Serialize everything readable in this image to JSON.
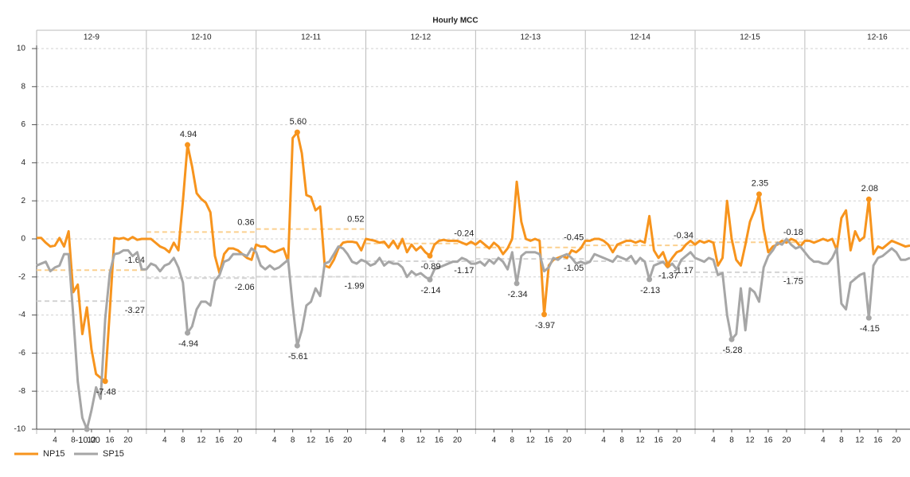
{
  "chart_data": {
    "type": "line",
    "title": "Hourly MCC",
    "days": [
      "12-9",
      "12-10",
      "12-11",
      "12-12",
      "12-13",
      "12-14",
      "12-15",
      "12-16"
    ],
    "x": [
      0,
      1,
      2,
      3,
      4,
      5,
      6,
      7,
      8,
      9,
      10,
      11,
      12,
      13,
      14,
      15,
      16,
      17,
      18,
      19,
      20,
      21,
      22,
      23,
      24,
      25,
      26,
      27,
      28,
      29,
      30,
      31,
      32,
      33,
      34,
      35,
      36,
      37,
      38,
      39,
      40,
      41,
      42,
      43,
      44,
      45,
      46,
      47,
      48,
      49,
      50,
      51,
      52,
      53,
      54,
      55,
      56,
      57,
      58,
      59,
      60,
      61,
      62,
      63,
      64,
      65,
      66,
      67,
      68,
      69,
      70,
      71,
      72,
      73,
      74,
      75,
      76,
      77,
      78,
      79,
      80,
      81,
      82,
      83,
      84,
      85,
      86,
      87,
      88,
      89,
      90,
      91,
      92,
      93,
      94,
      95,
      96,
      97,
      98,
      99,
      100,
      101,
      102,
      103,
      104,
      105,
      106,
      107,
      108,
      109,
      110,
      111,
      112,
      113,
      114,
      115,
      116,
      117,
      118,
      119,
      120,
      121,
      122,
      123,
      124,
      125,
      126,
      127,
      128,
      129,
      130,
      131,
      132,
      133,
      134,
      135,
      136,
      137,
      138,
      139,
      140,
      141,
      142,
      143,
      144,
      145,
      146,
      147,
      148,
      149,
      150,
      151,
      152,
      153,
      154,
      155,
      156,
      157,
      158,
      159,
      160,
      161,
      162,
      163,
      164,
      165,
      166,
      167,
      168,
      169,
      170,
      171,
      172,
      173,
      174,
      175,
      176,
      177,
      178,
      179,
      180,
      181,
      182,
      183,
      184,
      185,
      186,
      187,
      188,
      189,
      190,
      191
    ],
    "series": [
      {
        "name": "NP15",
        "color": "#f7941d",
        "avg_color": "#fbd08f",
        "values": [
          0.05,
          0.05,
          -0.2,
          -0.4,
          -0.35,
          0.05,
          -0.4,
          0.4,
          -2.8,
          -2.4,
          -5.0,
          -3.6,
          -5.8,
          -7.1,
          -7.3,
          -7.48,
          -3.8,
          0.05,
          0,
          0.05,
          -0.05,
          0.1,
          -0.05,
          0,
          0,
          0,
          -0.2,
          -0.4,
          -0.5,
          -0.7,
          -0.2,
          -0.6,
          2.0,
          4.94,
          3.8,
          2.4,
          2.1,
          1.9,
          1.4,
          -0.9,
          -1.8,
          -0.8,
          -0.5,
          -0.5,
          -0.6,
          -0.8,
          -1.0,
          -1.1,
          -0.3,
          -0.4,
          -0.4,
          -0.6,
          -0.7,
          -0.6,
          -0.5,
          -1.2,
          5.3,
          5.6,
          4.5,
          2.3,
          2.2,
          1.5,
          1.7,
          -1.4,
          -1.5,
          -1.1,
          -0.5,
          -0.2,
          -0.15,
          -0.15,
          -0.2,
          -0.6,
          0,
          -0.05,
          -0.1,
          -0.2,
          -0.15,
          -0.45,
          -0.1,
          -0.5,
          0,
          -0.7,
          -0.3,
          -0.6,
          -0.4,
          -0.7,
          -0.89,
          -0.3,
          -0.1,
          -0.05,
          -0.1,
          -0.1,
          -0.1,
          -0.2,
          -0.3,
          -0.15,
          -0.3,
          -0.1,
          -0.3,
          -0.5,
          -0.2,
          -0.4,
          -0.8,
          -0.5,
          0,
          3.0,
          0.9,
          0,
          -0.1,
          0,
          -0.1,
          -3.97,
          -1.4,
          -1.1,
          -1.0,
          -0.9,
          -1.0,
          -0.6,
          -0.7,
          -0.5,
          -0.1,
          -0.1,
          0,
          0,
          -0.1,
          -0.3,
          -0.7,
          -0.3,
          -0.2,
          -0.1,
          -0.1,
          -0.2,
          -0.1,
          -0.2,
          1.2,
          -0.6,
          -1.0,
          -0.7,
          -1.37,
          -1.0,
          -0.7,
          -0.6,
          -0.3,
          -0.1,
          -0.3,
          -0.1,
          -0.2,
          -0.1,
          -0.2,
          -1.4,
          -1.0,
          2.0,
          0,
          -1.1,
          -1.4,
          -0.3,
          0.9,
          1.5,
          2.35,
          0.5,
          -0.7,
          -0.4,
          -0.3,
          -0.1,
          -0.2,
          0,
          -0.1,
          -0.4,
          -0.1,
          -0.1,
          -0.2,
          -0.1,
          0,
          -0.1,
          0,
          -0.6,
          1.1,
          1.5,
          -0.6,
          0.4,
          -0.1,
          0.1,
          2.08,
          -0.8,
          -0.4,
          -0.5,
          -0.3,
          -0.1,
          -0.2,
          -0.3,
          -0.4,
          -0.35
        ],
        "daily_avg": [
          -1.64,
          0.36,
          0.52,
          -0.24,
          -0.45,
          -0.34,
          -0.18
        ],
        "annotations": [
          {
            "x": 15,
            "y": -7.48,
            "label": "-7.48"
          },
          {
            "x": 33,
            "y": 4.94,
            "label": "4.94"
          },
          {
            "x": 57,
            "y": 5.6,
            "label": "5.60"
          },
          {
            "x": 86,
            "y": -0.89,
            "label": "-0.89"
          },
          {
            "x": 111,
            "y": -3.97,
            "label": "-3.97"
          },
          {
            "x": 138,
            "y": -1.37,
            "label": "-1.37"
          },
          {
            "x": 158,
            "y": 2.35,
            "label": "2.35"
          },
          {
            "x": 182,
            "y": 2.08,
            "label": "2.08"
          }
        ]
      },
      {
        "name": "SP15",
        "color": "#a6a6a6",
        "avg_color": "#d4d4d4",
        "values": [
          -1.4,
          -1.3,
          -1.2,
          -1.7,
          -1.5,
          -1.4,
          -0.8,
          -0.8,
          -4,
          -7.5,
          -9.4,
          -10,
          -9,
          -7.8,
          -8.4,
          -4.2,
          -1.8,
          -0.8,
          -0.75,
          -0.6,
          -0.6,
          -0.9,
          -0.7,
          -1.6,
          -1.6,
          -1.3,
          -1.4,
          -1.7,
          -1.4,
          -1.3,
          -1,
          -1.5,
          -2.3,
          -4.94,
          -4.6,
          -3.7,
          -3.3,
          -3.3,
          -3.5,
          -2.2,
          -1.9,
          -1.2,
          -1.1,
          -0.8,
          -0.8,
          -0.8,
          -0.9,
          -0.5,
          -0.7,
          -1.4,
          -1.6,
          -1.4,
          -1.6,
          -1.5,
          -1.3,
          -1.1,
          -3.5,
          -5.61,
          -4.8,
          -3.5,
          -3.3,
          -2.6,
          -3,
          -1.3,
          -1.2,
          -0.8,
          -0.4,
          -0.5,
          -0.8,
          -1.2,
          -1.3,
          -1.1,
          -1.2,
          -1.4,
          -1.3,
          -1.0,
          -1.4,
          -1.2,
          -1.3,
          -1.3,
          -1.5,
          -2.0,
          -1.7,
          -1.9,
          -1.8,
          -2.0,
          -2.14,
          -1.6,
          -1.5,
          -1.4,
          -1.3,
          -1.2,
          -1.2,
          -1.0,
          -1.1,
          -1.3,
          -1.3,
          -1.2,
          -1.4,
          -1.1,
          -1.3,
          -1.0,
          -1.2,
          -1.6,
          -0.7,
          -2.34,
          -0.9,
          -0.7,
          -0.7,
          -0.7,
          -0.8,
          -1.7,
          -1.5,
          -1.0,
          -1.1,
          -0.9,
          -0.8,
          -1.0,
          -1.3,
          -1.2,
          -1.3,
          -1.2,
          -0.8,
          -0.9,
          -1.0,
          -1.1,
          -1.2,
          -0.9,
          -1.0,
          -1.1,
          -0.9,
          -1.3,
          -1.0,
          -1.2,
          -2.13,
          -1.4,
          -1.3,
          -1.2,
          -1.5,
          -1.3,
          -1.6,
          -1.1,
          -0.9,
          -0.7,
          -1.0,
          -1.1,
          -1.2,
          -1.0,
          -1.1,
          -1.9,
          -1.8,
          -4.0,
          -5.28,
          -5.0,
          -2.6,
          -4.8,
          -2.6,
          -2.8,
          -3.3,
          -1.5,
          -0.9,
          -0.6,
          -0.2,
          -0.3,
          0,
          -0.3,
          -0.5,
          -0.4,
          -0.7,
          -1.0,
          -1.2,
          -1.2,
          -1.3,
          -1.3,
          -1.0,
          -0.5,
          -3.4,
          -3.7,
          -2.3,
          -2.1,
          -1.9,
          -1.8,
          -4.15,
          -1.4,
          -1.0,
          -0.9,
          -0.7,
          -0.5,
          -0.7,
          -1.1,
          -1.1,
          -1.0
        ],
        "daily_avg": [
          -3.27,
          -2.06,
          -1.99,
          -1.17,
          -1.05,
          -1.17,
          -1.75
        ],
        "annotations": [
          {
            "x": 11,
            "y": -10,
            "label": "-10.00"
          },
          {
            "x": 33,
            "y": -4.94,
            "label": "-4.94"
          },
          {
            "x": 57,
            "y": -5.61,
            "label": "-5.61"
          },
          {
            "x": 86,
            "y": -2.14,
            "label": "-2.14"
          },
          {
            "x": 105,
            "y": -2.34,
            "label": "-2.34"
          },
          {
            "x": 134,
            "y": -2.13,
            "label": "-2.13"
          },
          {
            "x": 152,
            "y": -5.28,
            "label": "-5.28"
          },
          {
            "x": 182,
            "y": -4.15,
            "label": "-4.15"
          }
        ]
      }
    ],
    "xlim": [
      0,
      191
    ],
    "xticks": [
      {
        "value": 4,
        "label": "4"
      },
      {
        "value": 8,
        "label": "8"
      },
      {
        "value": 12,
        "label": "12"
      },
      {
        "value": 16,
        "label": "16"
      },
      {
        "value": 20,
        "label": "20"
      },
      {
        "value": 28,
        "label": "4"
      },
      {
        "value": 32,
        "label": "8"
      },
      {
        "value": 36,
        "label": "12"
      },
      {
        "value": 40,
        "label": "16"
      },
      {
        "value": 44,
        "label": "20"
      },
      {
        "value": 52,
        "label": "4"
      },
      {
        "value": 56,
        "label": "8"
      },
      {
        "value": 60,
        "label": "12"
      },
      {
        "value": 64,
        "label": "16"
      },
      {
        "value": 68,
        "label": "20"
      },
      {
        "value": 76,
        "label": "4"
      },
      {
        "value": 80,
        "label": "8"
      },
      {
        "value": 84,
        "label": "12"
      },
      {
        "value": 88,
        "label": "16"
      },
      {
        "value": 92,
        "label": "20"
      },
      {
        "value": 100,
        "label": "4"
      },
      {
        "value": 104,
        "label": "8"
      },
      {
        "value": 108,
        "label": "12"
      },
      {
        "value": 112,
        "label": "16"
      },
      {
        "value": 116,
        "label": "20"
      },
      {
        "value": 124,
        "label": "4"
      },
      {
        "value": 128,
        "label": "8"
      },
      {
        "value": 132,
        "label": "12"
      },
      {
        "value": 136,
        "label": "16"
      },
      {
        "value": 140,
        "label": "20"
      },
      {
        "value": 148,
        "label": "4"
      },
      {
        "value": 152,
        "label": "8"
      },
      {
        "value": 156,
        "label": "12"
      },
      {
        "value": 160,
        "label": "16"
      },
      {
        "value": 164,
        "label": "20"
      },
      {
        "value": 172,
        "label": "4"
      },
      {
        "value": 176,
        "label": "8"
      },
      {
        "value": 180,
        "label": "12"
      },
      {
        "value": 184,
        "label": "16"
      },
      {
        "value": 188,
        "label": "20"
      }
    ],
    "ylim": [
      -10,
      10
    ],
    "yticks": [
      -10,
      -8,
      -6,
      -4,
      -2,
      0,
      2,
      4,
      6,
      8,
      10
    ],
    "grid": true
  }
}
